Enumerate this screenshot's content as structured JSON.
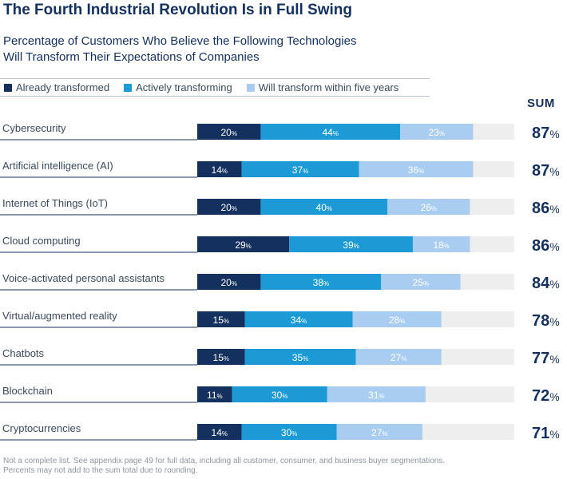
{
  "title": "The Fourth Industrial Revolution Is in Full Swing",
  "subtitle_lines": [
    "Percentage of Customers Who Believe the Following Technologies",
    "Will Transform Their Expectations of Companies"
  ],
  "sum_label": "SUM",
  "percent_sign": "%",
  "footnote_lines": [
    "Not a complete list. See appendix page 49 for full data, including all customer, consumer, and business buyer segmentations.",
    "Percents may not add to the sum total due to rounding."
  ],
  "colors": {
    "already": "#14305e",
    "actively": "#1b9ad6",
    "within_five": "#a9cdf0",
    "track": "#eeeeee"
  },
  "chart_data": {
    "type": "bar",
    "orientation": "horizontal",
    "stacked": true,
    "xlim": [
      0,
      100
    ],
    "legend_position": "top",
    "categories": [
      "Cybersecurity",
      "Artificial intelligence (AI)",
      "Internet of Things (IoT)",
      "Cloud computing",
      "Voice-activated personal assistants",
      "Virtual/augmented reality",
      "Chatbots",
      "Blockchain",
      "Cryptocurrencies"
    ],
    "series": [
      {
        "name": "Already transformed",
        "values": [
          20,
          14,
          20,
          29,
          20,
          15,
          15,
          11,
          14
        ]
      },
      {
        "name": "Actively transforming",
        "values": [
          44,
          37,
          40,
          39,
          38,
          34,
          35,
          30,
          30
        ]
      },
      {
        "name": "Will transform within five years",
        "values": [
          23,
          36,
          26,
          18,
          25,
          28,
          27,
          31,
          27
        ]
      }
    ],
    "sum": [
      87,
      87,
      86,
      86,
      84,
      78,
      77,
      72,
      71
    ]
  }
}
